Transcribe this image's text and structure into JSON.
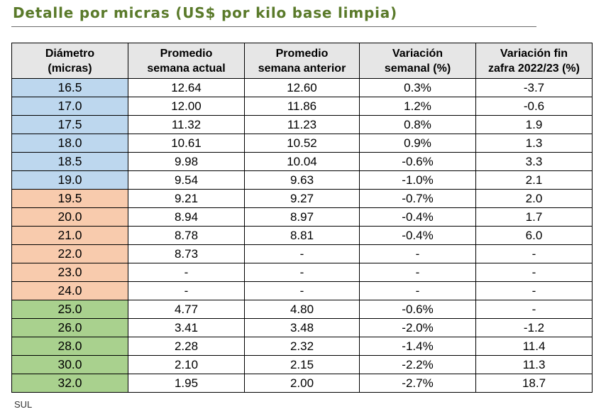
{
  "title": "Detalle por micras (US$ por kilo base limpia)",
  "colors": {
    "title": "#5a7a2a",
    "header_bg": "#e6e6e6",
    "group_blue": "#bdd7ee",
    "group_orange": "#f8cbad",
    "group_green": "#a9d18e"
  },
  "table": {
    "headers": [
      [
        "Diámetro",
        "(micras)"
      ],
      [
        "Promedio",
        "semana actual"
      ],
      [
        "Promedio",
        "semana anterior"
      ],
      [
        "Variación",
        "semanal (%)"
      ],
      [
        "Variación fin",
        "zafra 2022/23 (%)"
      ]
    ],
    "rows": [
      {
        "group": "blue",
        "cells": [
          "16.5",
          "12.64",
          "12.60",
          "0.3%",
          "-3.7"
        ]
      },
      {
        "group": "blue",
        "cells": [
          "17.0",
          "12.00",
          "11.86",
          "1.2%",
          "-0.6"
        ]
      },
      {
        "group": "blue",
        "cells": [
          "17.5",
          "11.32",
          "11.23",
          "0.8%",
          "1.9"
        ]
      },
      {
        "group": "blue",
        "cells": [
          "18.0",
          "10.61",
          "10.52",
          "0.9%",
          "1.3"
        ]
      },
      {
        "group": "blue",
        "cells": [
          "18.5",
          "9.98",
          "10.04",
          "-0.6%",
          "3.3"
        ]
      },
      {
        "group": "blue",
        "cells": [
          "19.0",
          "9.54",
          "9.63",
          "-1.0%",
          "2.1"
        ]
      },
      {
        "group": "orange",
        "cells": [
          "19.5",
          "9.21",
          "9.27",
          "-0.7%",
          "2.0"
        ]
      },
      {
        "group": "orange",
        "cells": [
          "20.0",
          "8.94",
          "8.97",
          "-0.4%",
          "1.7"
        ]
      },
      {
        "group": "orange",
        "cells": [
          "21.0",
          "8.78",
          "8.81",
          "-0.4%",
          "6.0"
        ]
      },
      {
        "group": "orange",
        "cells": [
          "22.0",
          "8.73",
          "-",
          "-",
          "-"
        ]
      },
      {
        "group": "orange",
        "cells": [
          "23.0",
          "-",
          "-",
          "-",
          "-"
        ]
      },
      {
        "group": "orange",
        "cells": [
          "24.0",
          "-",
          "-",
          "-",
          "-"
        ]
      },
      {
        "group": "green",
        "cells": [
          "25.0",
          "4.77",
          "4.80",
          "-0.6%",
          "-"
        ]
      },
      {
        "group": "green",
        "cells": [
          "26.0",
          "3.41",
          "3.48",
          "-2.0%",
          "-1.2"
        ]
      },
      {
        "group": "green",
        "cells": [
          "28.0",
          "2.28",
          "2.32",
          "-1.4%",
          "11.4"
        ]
      },
      {
        "group": "green",
        "cells": [
          "30.0",
          "2.10",
          "2.15",
          "-2.2%",
          "11.3"
        ]
      },
      {
        "group": "green",
        "cells": [
          "32.0",
          "1.95",
          "2.00",
          "-2.7%",
          "18.7"
        ]
      }
    ]
  },
  "source": "SUL"
}
